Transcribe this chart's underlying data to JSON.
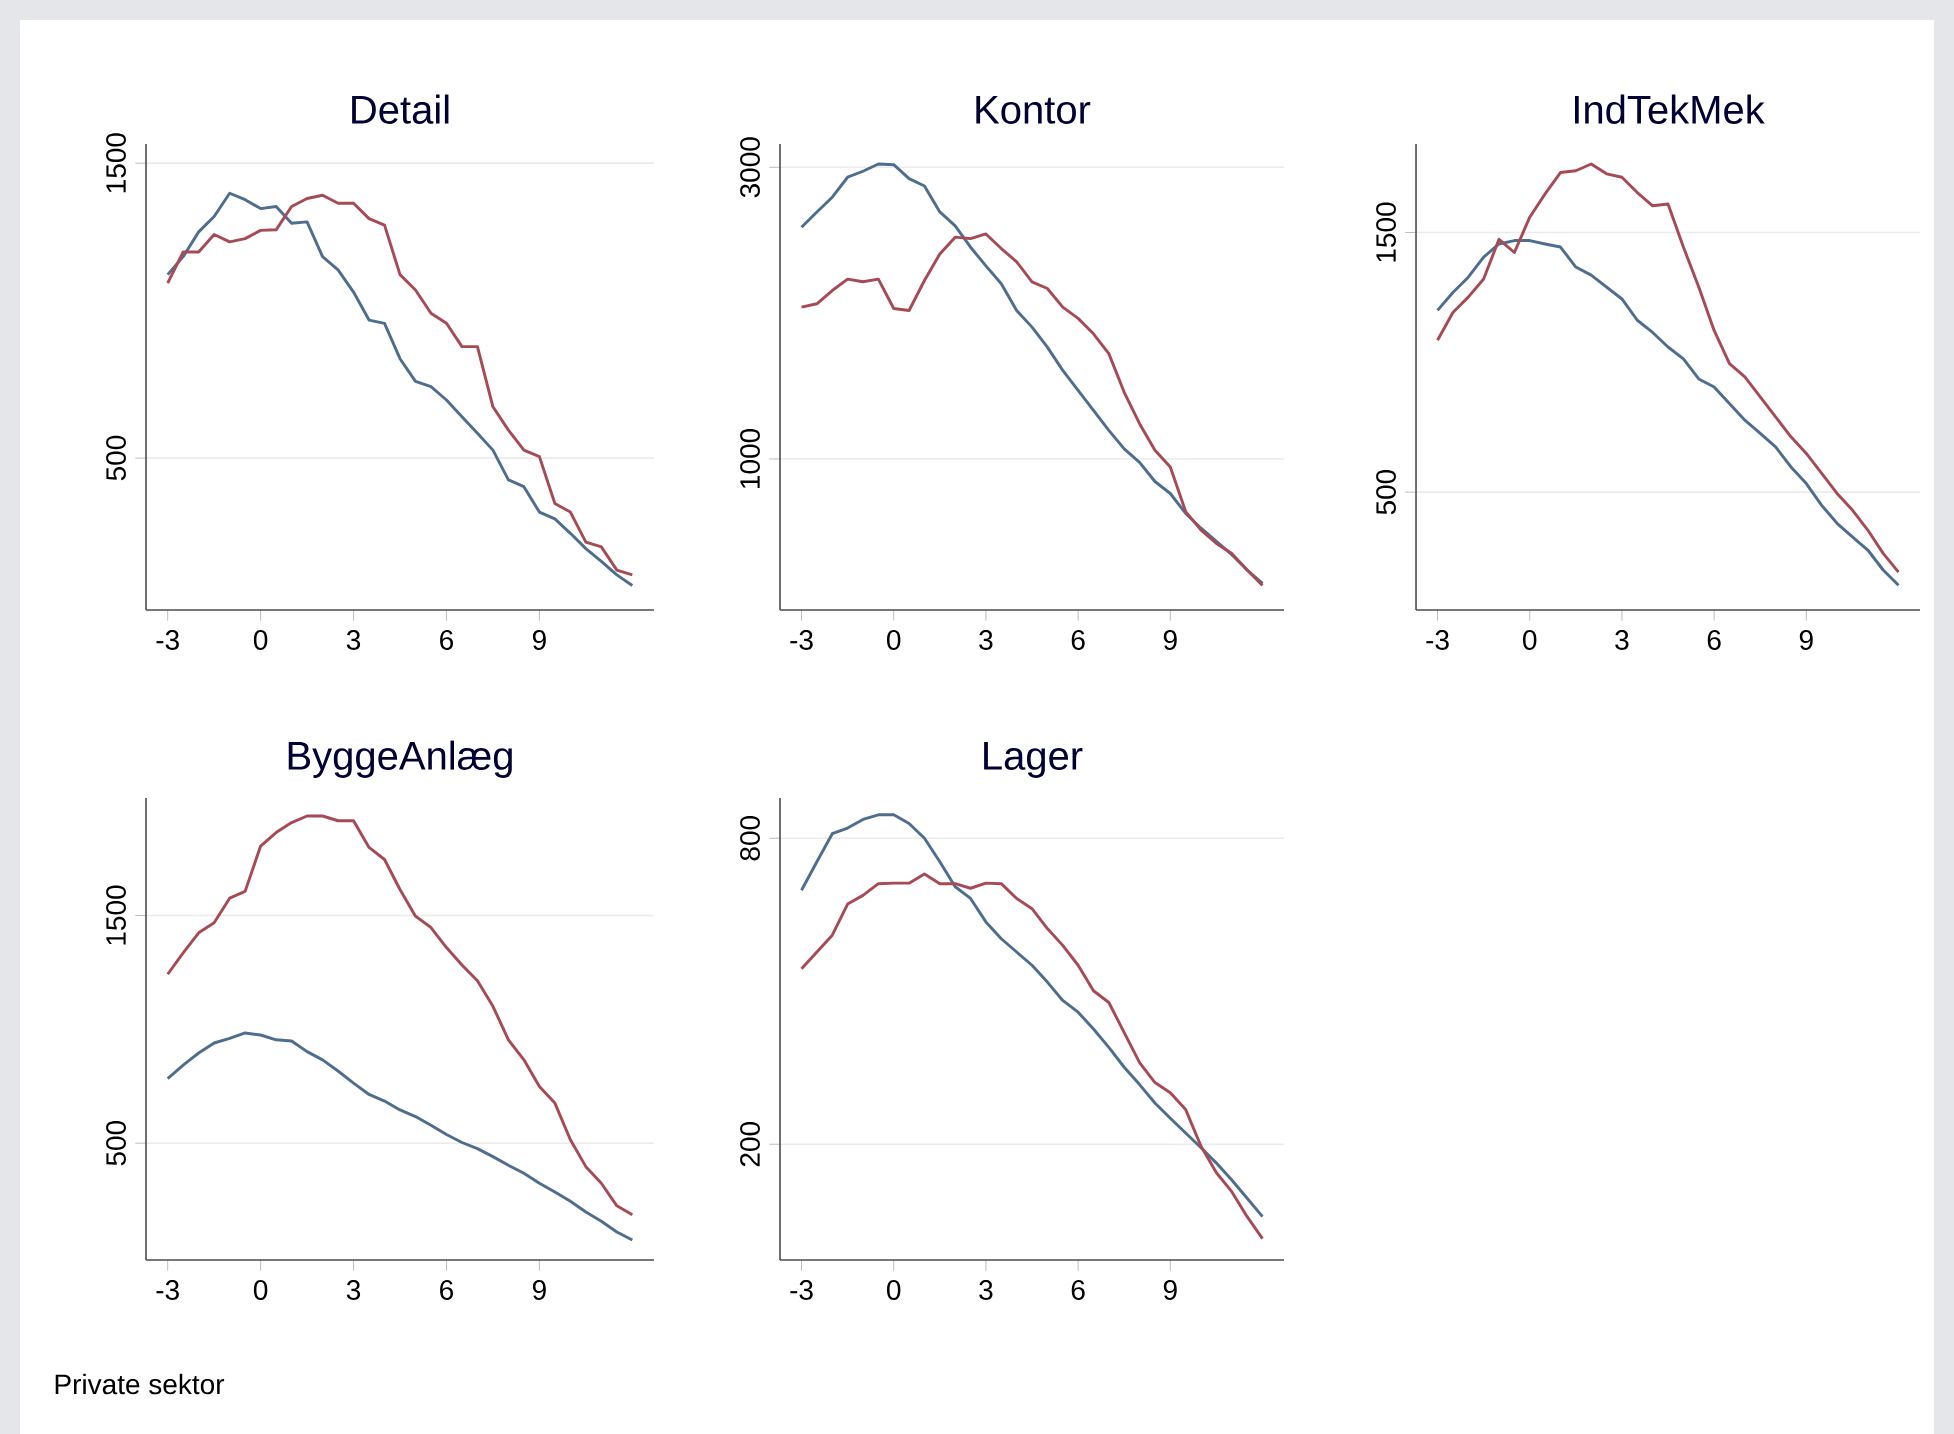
{
  "chart_data": [
    {
      "type": "line",
      "title": "Detail",
      "x": [
        -3,
        -2.5,
        -2,
        -1.5,
        -1,
        -0.5,
        0,
        0.5,
        1,
        1.5,
        2,
        2.5,
        3,
        3.5,
        4,
        4.5,
        5,
        5.5,
        6,
        6.5,
        7,
        7.5,
        8,
        8.5,
        9,
        9.5,
        10,
        10.5,
        11,
        11.5,
        12
      ],
      "xlim": [
        -3.7,
        12.7
      ],
      "xticks": [
        -3,
        0,
        3,
        6,
        9
      ],
      "ylim": [
        -15,
        1565
      ],
      "yticks": [
        500,
        1500
      ],
      "grid": "y",
      "series": [
        {
          "color": "#4f6d8c",
          "values": [
            1122,
            1183,
            1267,
            1319,
            1398,
            1376,
            1346,
            1353,
            1296,
            1301,
            1183,
            1138,
            1063,
            968,
            957,
            837,
            760,
            742,
            697,
            640,
            584,
            527,
            426,
            403,
            317,
            294,
            245,
            193,
            150,
            104,
            68
          ]
        },
        {
          "color": "#a64b55",
          "values": [
            1093,
            1199,
            1199,
            1258,
            1233,
            1244,
            1272,
            1274,
            1353,
            1380,
            1391,
            1364,
            1364,
            1312,
            1290,
            1122,
            1070,
            991,
            957,
            878,
            878,
            674,
            595,
            527,
            505,
            346,
            317,
            215,
            199,
            120,
            104
          ]
        }
      ]
    },
    {
      "type": "line",
      "title": "Kontor",
      "x": [
        -3,
        -2.5,
        -2,
        -1.5,
        -1,
        -0.5,
        0,
        0.5,
        1,
        1.5,
        2,
        2.5,
        3,
        3.5,
        4,
        4.5,
        5,
        5.5,
        6,
        6.5,
        7,
        7.5,
        8,
        8.5,
        9,
        9.5,
        10,
        10.5,
        11,
        11.5,
        12
      ],
      "xlim": [
        -3.7,
        12.7
      ],
      "xticks": [
        -3,
        0,
        3,
        6,
        9
      ],
      "ylim": [
        -36,
        3160
      ],
      "yticks": [
        1000,
        3000
      ],
      "grid": "y",
      "series": [
        {
          "color": "#4f6d8c",
          "values": [
            2589,
            2694,
            2795,
            2932,
            2973,
            3023,
            3018,
            2922,
            2872,
            2694,
            2598,
            2452,
            2324,
            2201,
            2018,
            1904,
            1767,
            1607,
            1470,
            1333,
            1196,
            1069,
            977,
            845,
            763,
            626,
            525,
            434,
            343,
            238,
            146
          ]
        },
        {
          "color": "#a64b55",
          "values": [
            2041,
            2064,
            2155,
            2233,
            2215,
            2233,
            2032,
            2018,
            2224,
            2406,
            2521,
            2511,
            2543,
            2443,
            2352,
            2215,
            2169,
            2041,
            1964,
            1858,
            1722,
            1457,
            1242,
            1059,
            945,
            639,
            512,
            420,
            352,
            238,
            133
          ]
        }
      ]
    },
    {
      "type": "line",
      "title": "IndTekMek",
      "x": [
        -3,
        -2.5,
        -2,
        -1.5,
        -1,
        -0.5,
        0,
        0.5,
        1,
        1.5,
        2,
        2.5,
        3,
        3.5,
        4,
        4.5,
        5,
        5.5,
        6,
        6.5,
        7,
        7.5,
        8,
        8.5,
        9,
        9.5,
        10,
        10.5,
        11,
        11.5,
        12
      ],
      "xlim": [
        -3.7,
        12.7
      ],
      "xticks": [
        -3,
        0,
        3,
        6,
        9
      ],
      "ylim": [
        46,
        1841
      ],
      "yticks": [
        500,
        1500
      ],
      "grid": "y",
      "series": [
        {
          "color": "#4f6d8c",
          "values": [
            1200,
            1269,
            1328,
            1405,
            1456,
            1469,
            1469,
            1456,
            1444,
            1367,
            1336,
            1290,
            1244,
            1162,
            1115,
            1059,
            1013,
            936,
            905,
            841,
            777,
            726,
            674,
            597,
            533,
            449,
            380,
            328,
            277,
            200,
            141
          ]
        },
        {
          "color": "#a64b55",
          "values": [
            1085,
            1192,
            1251,
            1321,
            1474,
            1423,
            1559,
            1649,
            1731,
            1738,
            1764,
            1726,
            1713,
            1654,
            1603,
            1610,
            1444,
            1290,
            1123,
            995,
            944,
            867,
            790,
            713,
            649,
            572,
            495,
            431,
            354,
            264,
            192
          ]
        }
      ]
    },
    {
      "type": "line",
      "title": "ByggeAnlæg",
      "x": [
        -3,
        -2.5,
        -2,
        -1.5,
        -1,
        -0.5,
        0,
        0.5,
        1,
        1.5,
        2,
        2.5,
        3,
        3.5,
        4,
        4.5,
        5,
        5.5,
        6,
        6.5,
        7,
        7.5,
        8,
        8.5,
        9,
        9.5,
        10,
        10.5,
        11,
        11.5,
        12
      ],
      "xlim": [
        -3.7,
        12.7
      ],
      "xticks": [
        -3,
        0,
        3,
        6,
        9
      ],
      "ylim": [
        -13,
        2016
      ],
      "yticks": [
        500,
        1500
      ],
      "grid": "y",
      "annotations": [
        "Private sektor"
      ],
      "series": [
        {
          "color": "#4f6d8c",
          "values": [
            784,
            843,
            896,
            940,
            960,
            984,
            975,
            954,
            949,
            902,
            866,
            817,
            764,
            714,
            685,
            646,
            617,
            579,
            538,
            503,
            476,
            441,
            403,
            368,
            324,
            286,
            245,
            198,
            157,
            110,
            75
          ]
        },
        {
          "color": "#a64b55",
          "values": [
            1242,
            1336,
            1424,
            1468,
            1576,
            1606,
            1805,
            1864,
            1908,
            1937,
            1937,
            1916,
            1916,
            1799,
            1746,
            1614,
            1497,
            1447,
            1359,
            1283,
            1213,
            1101,
            954,
            866,
            749,
            676,
            515,
            397,
            324,
            225,
            186
          ]
        }
      ]
    },
    {
      "type": "line",
      "title": "Lager",
      "x": [
        -3,
        -2.5,
        -2,
        -1.5,
        -1,
        -0.5,
        0,
        0.5,
        1,
        1.5,
        2,
        2.5,
        3,
        3.5,
        4,
        4.5,
        5,
        5.5,
        6,
        6.5,
        7,
        7.5,
        8,
        8.5,
        9,
        9.5,
        10,
        10.5,
        11,
        11.5,
        12
      ],
      "xlim": [
        -3.7,
        12.7
      ],
      "xticks": [
        -3,
        0,
        3,
        6,
        9
      ],
      "ylim": [
        -27,
        879
      ],
      "yticks": [
        200,
        800
      ],
      "grid": "y",
      "series": [
        {
          "color": "#4f6d8c",
          "values": [
            698,
            754,
            809,
            820,
            837,
            846,
            846,
            829,
            800,
            754,
            705,
            682,
            636,
            603,
            577,
            551,
            518,
            482,
            459,
            426,
            390,
            351,
            317,
            281,
            251,
            222,
            193,
            163,
            130,
            94,
            58
          ]
        },
        {
          "color": "#a64b55",
          "values": [
            544,
            577,
            610,
            671,
            688,
            711,
            712,
            712,
            730,
            711,
            711,
            702,
            712,
            711,
            682,
            662,
            623,
            590,
            551,
            501,
            478,
            419,
            360,
            321,
            301,
            268,
            196,
            144,
            107,
            58,
            15
          ]
        }
      ]
    }
  ]
}
